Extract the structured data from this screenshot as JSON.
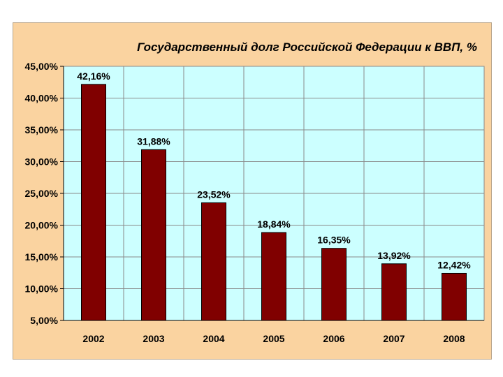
{
  "chart_data": {
    "type": "bar",
    "title": "Государственный долг Российской Федерации к ВВП, %",
    "categories": [
      "2002",
      "2003",
      "2004",
      "2005",
      "2006",
      "2007",
      "2008"
    ],
    "values": [
      42.16,
      31.88,
      23.52,
      18.84,
      16.35,
      13.92,
      12.42
    ],
    "data_labels": [
      "42,16%",
      "31,88%",
      "23,52%",
      "18,84%",
      "16,35%",
      "13,92%",
      "12,42%"
    ],
    "ylim": [
      5,
      45
    ],
    "yticks": [
      5,
      10,
      15,
      20,
      25,
      30,
      35,
      40,
      45
    ],
    "ytick_labels": [
      "5,00%",
      "10,00%",
      "15,00%",
      "20,00%",
      "25,00%",
      "30,00%",
      "35,00%",
      "40,00%",
      "45,00%"
    ],
    "grid": true,
    "legend": "none",
    "colors": {
      "bar": "#800000",
      "plot_bg": "#ccffff",
      "frame_bg": "#fad3a0",
      "grid": "#8a8a8a"
    }
  }
}
